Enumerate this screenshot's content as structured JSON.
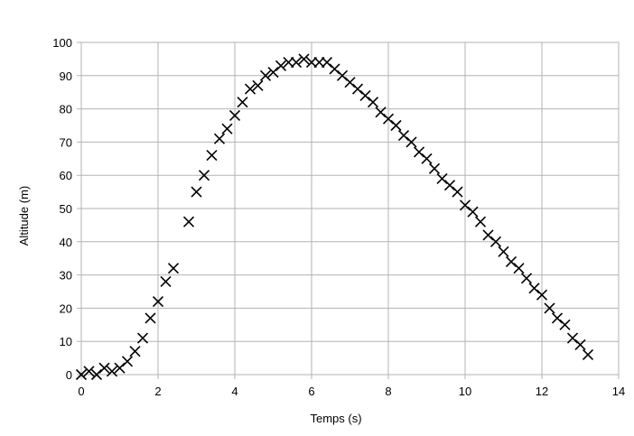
{
  "chart_data": {
    "type": "scatter",
    "title": "",
    "xlabel": "Temps (s)",
    "ylabel": "Altitude (m)",
    "xlim": [
      0,
      14
    ],
    "ylim": [
      0,
      100
    ],
    "xticks": [
      0,
      2,
      4,
      6,
      8,
      10,
      12,
      14
    ],
    "yticks": [
      0,
      10,
      20,
      30,
      40,
      50,
      60,
      70,
      80,
      90,
      100
    ],
    "x_tick_labels": [
      "0",
      "2",
      "4",
      "6",
      "8",
      "10",
      "12",
      "14"
    ],
    "y_tick_labels": [
      "0",
      "10",
      "20",
      "30",
      "40",
      "50",
      "60",
      "70",
      "80",
      "90",
      "100"
    ],
    "grid": true,
    "legend": "none",
    "marker": "x",
    "colors": {
      "marker": "#000000",
      "grid": "#b3b3b3",
      "background": "#ffffff"
    },
    "x": [
      0,
      0.2,
      0.4,
      0.6,
      0.8,
      1.0,
      1.2,
      1.4,
      1.6,
      1.8,
      2.0,
      2.2,
      2.4,
      2.8,
      3.0,
      3.2,
      3.4,
      3.6,
      3.8,
      4.0,
      4.2,
      4.4,
      4.6,
      4.8,
      5.0,
      5.2,
      5.4,
      5.6,
      5.8,
      6.0,
      6.2,
      6.4,
      6.6,
      6.8,
      7.0,
      7.2,
      7.4,
      7.6,
      7.8,
      8.0,
      8.2,
      8.4,
      8.6,
      8.8,
      9.0,
      9.2,
      9.4,
      9.6,
      9.8,
      10.0,
      10.2,
      10.4,
      10.6,
      10.8,
      11.0,
      11.2,
      11.4,
      11.6,
      11.8,
      12.0,
      12.2,
      12.4,
      12.6,
      12.8,
      13.0,
      13.2
    ],
    "y": [
      0,
      1,
      0,
      2,
      1,
      2,
      4,
      7,
      11,
      17,
      22,
      28,
      32,
      46,
      55,
      60,
      66,
      71,
      74,
      78,
      82,
      86,
      87,
      90,
      91,
      93,
      94,
      94,
      95,
      94,
      94,
      94,
      92,
      90,
      88,
      86,
      84,
      82,
      79,
      77,
      75,
      72,
      70,
      67,
      65,
      62,
      59,
      57,
      55,
      51,
      49,
      46,
      42,
      40,
      37,
      34,
      32,
      29,
      26,
      24,
      20,
      17,
      15,
      11,
      9,
      6
    ]
  }
}
